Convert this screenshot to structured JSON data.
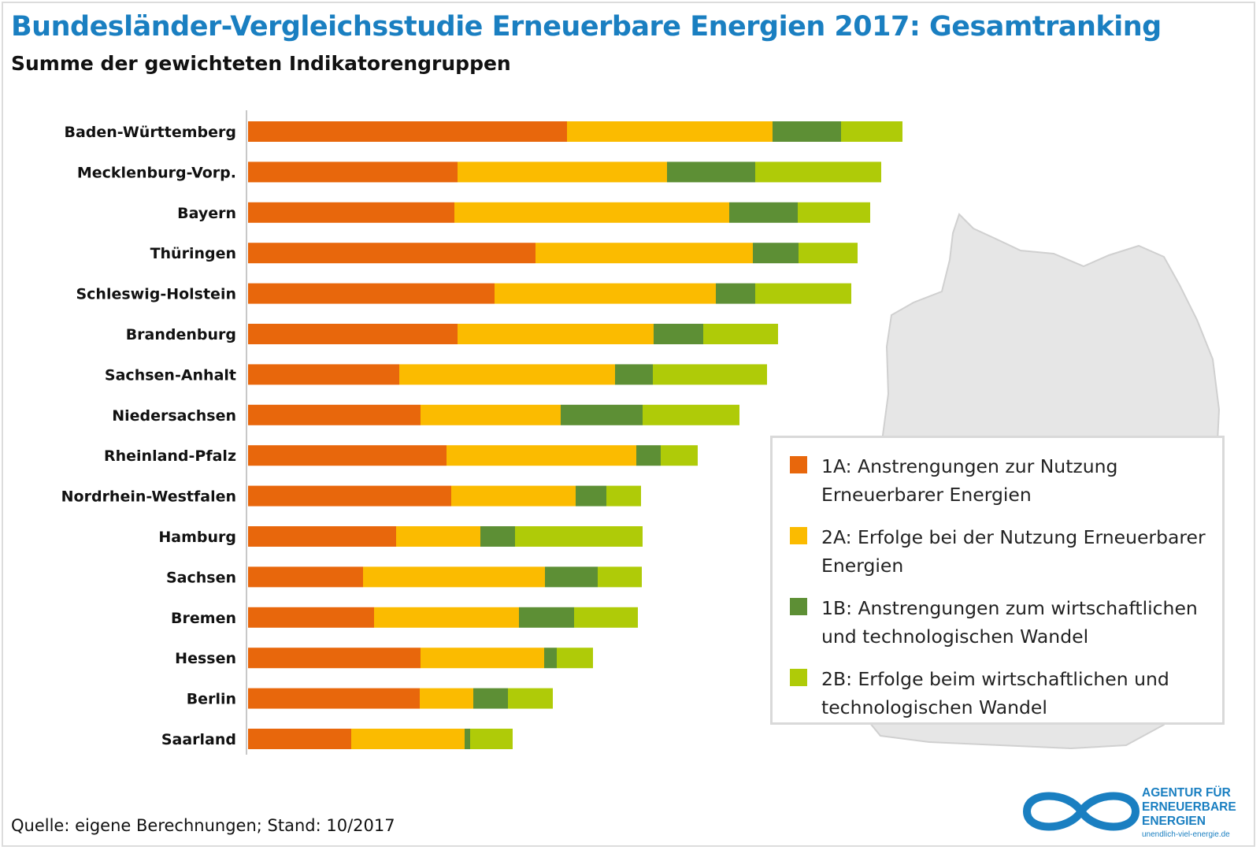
{
  "title": "Bundesländer-Vergleichsstudie Erneuerbare Energien 2017: Gesamtranking",
  "subtitle": "Summe der gewichteten Indikatorengruppen",
  "colors": {
    "title": "#1a7fc1",
    "series": [
      "#e8670c",
      "#fbbb00",
      "#5d8f35",
      "#afcb08"
    ],
    "axis": "#c8c8c8",
    "map": "#e6e6e6",
    "logo": "#1a7fc1"
  },
  "chart_data": {
    "type": "bar",
    "orientation": "horizontal",
    "stacked": true,
    "categories": [
      "Baden-Württemberg",
      "Mecklenburg-Vorp.",
      "Bayern",
      "Thüringen",
      "Schleswig-Holstein",
      "Brandenburg",
      "Sachsen-Anhalt",
      "Niedersachsen",
      "Rheinland-Pfalz",
      "Nordrhein-Westfalen",
      "Hamburg",
      "Sachsen",
      "Bremen",
      "Hessen",
      "Berlin",
      "Saarland"
    ],
    "series": [
      {
        "name": "1A: Anstrengungen zur Nutzung Erneuerbarer Energien",
        "values": [
          0.405,
          0.266,
          0.262,
          0.365,
          0.313,
          0.266,
          0.192,
          0.219,
          0.252,
          0.258,
          0.188,
          0.146,
          0.16,
          0.219,
          0.218,
          0.131
        ]
      },
      {
        "name": "2A: Erfolge bei der Nutzung Erneuerbarer Energien",
        "values": [
          0.261,
          0.266,
          0.349,
          0.276,
          0.281,
          0.249,
          0.274,
          0.178,
          0.241,
          0.158,
          0.107,
          0.231,
          0.184,
          0.157,
          0.068,
          0.144
        ]
      },
      {
        "name": "1B: Anstrengungen zum wirtschaftlichen und technologischen Wandel",
        "values": [
          0.087,
          0.112,
          0.087,
          0.058,
          0.05,
          0.063,
          0.048,
          0.104,
          0.031,
          0.039,
          0.044,
          0.067,
          0.07,
          0.016,
          0.044,
          0.007
        ]
      },
      {
        "name": "2B: Erfolge beim wirtschaftlichen und technologischen Wandel",
        "values": [
          0.078,
          0.16,
          0.092,
          0.075,
          0.122,
          0.095,
          0.145,
          0.123,
          0.047,
          0.044,
          0.162,
          0.056,
          0.081,
          0.046,
          0.057,
          0.054
        ]
      }
    ],
    "xlim": [
      0,
      1
    ],
    "xlabel": "",
    "ylabel": "",
    "grid": false,
    "legend_position": "bottom-right"
  },
  "legend": {
    "items": [
      {
        "label": "1A: Anstrengungen zur Nutzung Erneuerbarer Energien"
      },
      {
        "label": "2A: Erfolge bei der Nutzung Erneuerbarer Energien"
      },
      {
        "label": "1B: Anstrengungen zum wirtschaftlichen und technologischen Wandel"
      },
      {
        "label": "2B: Erfolge beim wirtschaftlichen und technologischen Wandel"
      }
    ]
  },
  "source": "Quelle: eigene Berechnungen; Stand: 10/2017",
  "logo": {
    "lines": [
      "AGENTUR FÜR",
      "ERNEUERBARE",
      "ENERGIEN"
    ],
    "url": "unendlich-viel-energie.de"
  },
  "background_map": "germany-map-silhouette"
}
